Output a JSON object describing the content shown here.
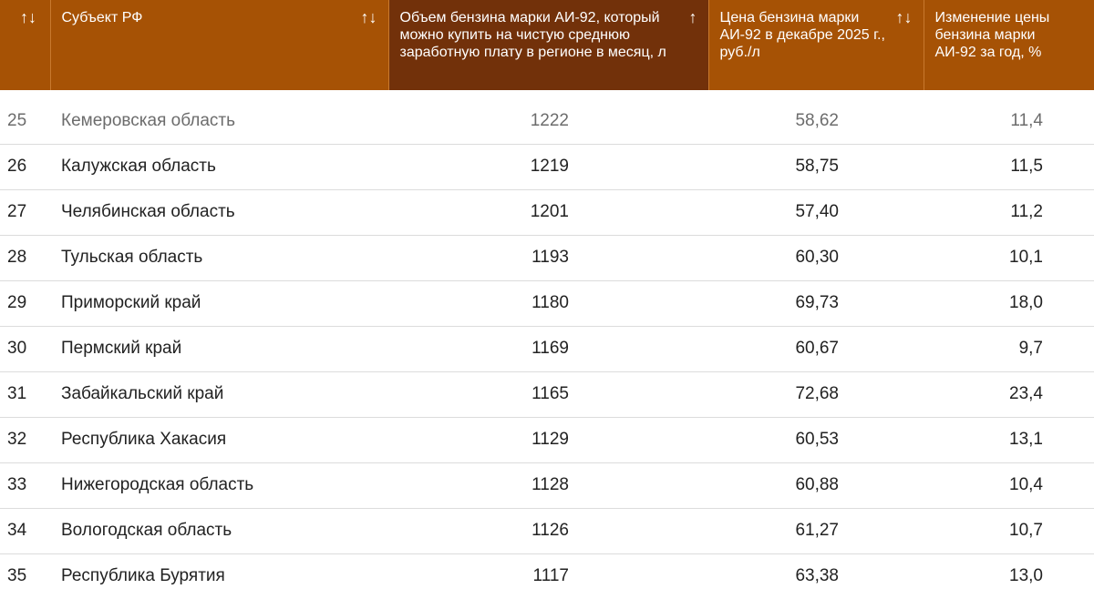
{
  "header": {
    "columns": [
      {
        "label": "",
        "sort_icon": "sort-both-icon",
        "sort_glyph": "↑↓"
      },
      {
        "label": "Субъект РФ",
        "sort_icon": "sort-both-icon",
        "sort_glyph": "↑↓"
      },
      {
        "label": "Объем бензина марки АИ-92, который можно купить на чистую среднюю заработную плату в регионе в месяц, л",
        "sort_icon": "sort-ascending-icon",
        "sort_glyph": "↑"
      },
      {
        "label": "Цена бензина марки АИ-92 в декабре 2025 г., руб./л",
        "sort_icon": "sort-both-icon",
        "sort_glyph": "↑↓"
      },
      {
        "label": "Изменение цены бензина марки АИ-92 за год, %",
        "sort_icon": "",
        "sort_glyph": ""
      }
    ]
  },
  "rows": [
    {
      "n": "25",
      "region": "Кемеровская область",
      "volume": "1222",
      "price": "58,62",
      "change": "11,4"
    },
    {
      "n": "26",
      "region": "Калужская область",
      "volume": "1219",
      "price": "58,75",
      "change": "11,5"
    },
    {
      "n": "27",
      "region": "Челябинская область",
      "volume": "1201",
      "price": "57,40",
      "change": "11,2"
    },
    {
      "n": "28",
      "region": "Тульская область",
      "volume": "1193",
      "price": "60,30",
      "change": "10,1"
    },
    {
      "n": "29",
      "region": "Приморский край",
      "volume": "1180",
      "price": "69,73",
      "change": "18,0"
    },
    {
      "n": "30",
      "region": "Пермский край",
      "volume": "1169",
      "price": "60,67",
      "change": "9,7"
    },
    {
      "n": "31",
      "region": "Забайкальский край",
      "volume": "1165",
      "price": "72,68",
      "change": "23,4"
    },
    {
      "n": "32",
      "region": "Республика Хакасия",
      "volume": "1129",
      "price": "60,53",
      "change": "13,1"
    },
    {
      "n": "33",
      "region": "Нижегородская область",
      "volume": "1128",
      "price": "60,88",
      "change": "10,4"
    },
    {
      "n": "34",
      "region": "Вологодская область",
      "volume": "1126",
      "price": "61,27",
      "change": "10,7"
    },
    {
      "n": "35",
      "region": "Республика Бурятия",
      "volume": "1117",
      "price": "63,38",
      "change": "13,0"
    }
  ],
  "colors": {
    "header_bg": "#a65205",
    "active_header_bg": "#72310a",
    "header_text": "#ffffff"
  }
}
